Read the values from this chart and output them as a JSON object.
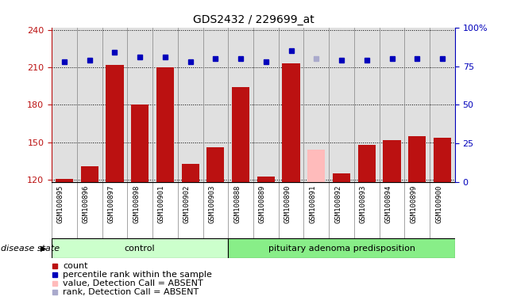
{
  "title": "GDS2432 / 229699_at",
  "samples": [
    "GSM100895",
    "GSM100896",
    "GSM100897",
    "GSM100898",
    "GSM100901",
    "GSM100902",
    "GSM100903",
    "GSM100888",
    "GSM100889",
    "GSM100890",
    "GSM100891",
    "GSM100892",
    "GSM100893",
    "GSM100894",
    "GSM100899",
    "GSM100900"
  ],
  "counts": [
    121,
    131,
    212,
    180,
    210,
    133,
    146,
    194,
    123,
    213,
    144,
    125,
    148,
    152,
    155,
    154
  ],
  "percentile_ranks": [
    78,
    79,
    84,
    81,
    81,
    78,
    80,
    80,
    78,
    85,
    80,
    79,
    79,
    80,
    80,
    80
  ],
  "absent_value_indices": [
    10
  ],
  "absent_rank_indices": [
    10
  ],
  "groups": [
    {
      "label": "control",
      "start": 0,
      "end": 7
    },
    {
      "label": "pituitary adenoma predisposition",
      "start": 7,
      "end": 16
    }
  ],
  "ylim_left": [
    118,
    242
  ],
  "ylim_right": [
    0,
    100
  ],
  "yticks_left": [
    120,
    150,
    180,
    210,
    240
  ],
  "yticks_right": [
    0,
    25,
    50,
    75,
    100
  ],
  "bar_color": "#bb1111",
  "bar_absent_color": "#ffbbbb",
  "dot_color": "#0000bb",
  "dot_absent_color": "#aaaacc",
  "grid_color": "#000000",
  "bg_plot": "#e0e0e0",
  "bg_group_control": "#ccffcc",
  "bg_group_disease": "#88ee88",
  "disease_state_label": "disease state",
  "legend_items": [
    {
      "label": "count",
      "color": "#bb1111",
      "marker": "s"
    },
    {
      "label": "percentile rank within the sample",
      "color": "#0000bb",
      "marker": "s"
    },
    {
      "label": "value, Detection Call = ABSENT",
      "color": "#ffbbbb",
      "marker": "s"
    },
    {
      "label": "rank, Detection Call = ABSENT",
      "color": "#aaaacc",
      "marker": "s"
    }
  ]
}
